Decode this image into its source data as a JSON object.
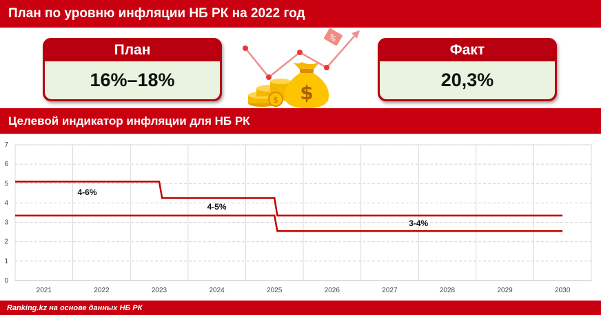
{
  "header": {
    "title": "План по уровню инфляции НБ РК на 2022 год"
  },
  "plan": {
    "label": "План",
    "value": "16%–18%"
  },
  "fact": {
    "label": "Факт",
    "value": "20,3%"
  },
  "section": {
    "title": "Целевой индикатор инфляции для НБ РК"
  },
  "footer": {
    "source": "Ranking.kz на основе данных НБ РК"
  },
  "colors": {
    "accent": "#c8000f",
    "card_body": "#eaf3df",
    "line": "#c00000"
  },
  "icons": [
    "money-bag-icon",
    "coin-stack-icon",
    "percent-tag-icon",
    "trend-arrow-icon"
  ],
  "chart_data": {
    "type": "line",
    "title": "Целевой индикатор инфляции для НБ РК",
    "categories": [
      "2021",
      "2022",
      "2023",
      "2024",
      "2025",
      "2026",
      "2027",
      "2028",
      "2029",
      "2030"
    ],
    "ylim": [
      0,
      7
    ],
    "yticks": [
      0,
      1,
      2,
      3,
      4,
      5,
      6,
      7
    ],
    "grid": true,
    "series": [
      {
        "x": [
          2020.5,
          2023.0,
          2023.05,
          2025.0,
          2025.05,
          2030.0
        ],
        "values": [
          5.1,
          5.1,
          4.25,
          4.25,
          3.35,
          3.35
        ]
      },
      {
        "x": [
          2020.5,
          2025.0,
          2025.05,
          2030.0
        ],
        "values": [
          3.35,
          3.35,
          2.55,
          2.55
        ]
      }
    ],
    "annotations": [
      {
        "text": "4-6%",
        "x": 2021.75,
        "y": 4.55
      },
      {
        "text": "4-5%",
        "x": 2024.0,
        "y": 3.8
      },
      {
        "text": "3-4%",
        "x": 2027.5,
        "y": 2.95
      }
    ]
  }
}
